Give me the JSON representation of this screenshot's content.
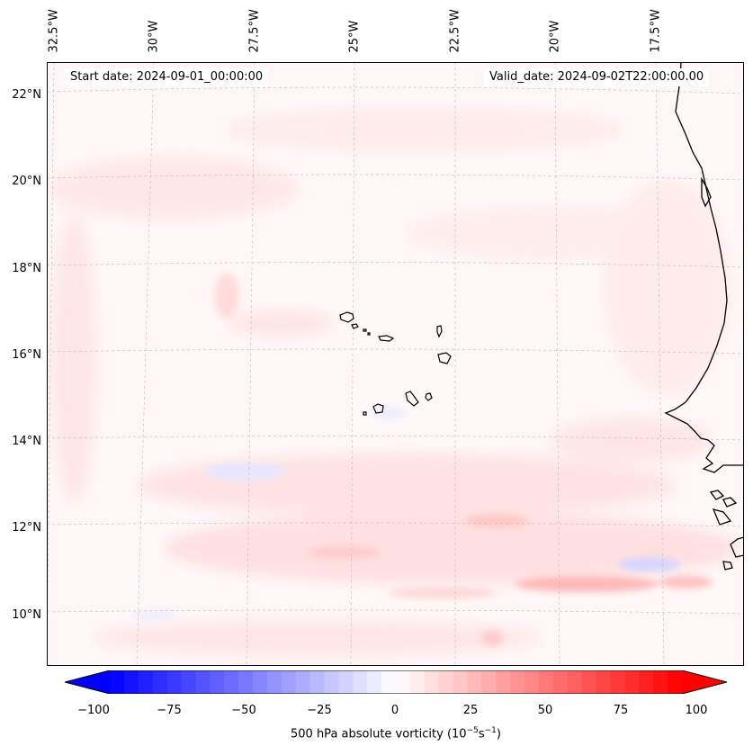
{
  "header": {
    "start_date": "Start date: 2024-09-01_00:00:00",
    "valid_date": "Valid_date: 2024-09-02T22:00:00.00"
  },
  "longitudes": [
    "32.5°W",
    "30°W",
    "27.5°W",
    "25°W",
    "22.5°W",
    "20°W",
    "17.5°W"
  ],
  "latitudes": [
    "22°N",
    "20°N",
    "18°N",
    "16°N",
    "14°N",
    "12°N",
    "10°N"
  ],
  "colorbar": {
    "label": "500 hPa absolute vorticity (10",
    "label_exp1": "−5",
    "label_mid": "s",
    "label_exp2": "−1",
    "label_end": ")",
    "ticks": [
      "−100",
      "−75",
      "−50",
      "−25",
      "0",
      "25",
      "50",
      "75",
      "100"
    ],
    "range": [
      -100,
      100
    ],
    "colors": {
      "min": "#0000ff",
      "mid": "#ffffff",
      "max": "#ff0000"
    }
  },
  "map": {
    "variable": "500 hPa absolute vorticity",
    "coastline_color": "#000000",
    "gridline_color": "#bbbbbb"
  }
}
